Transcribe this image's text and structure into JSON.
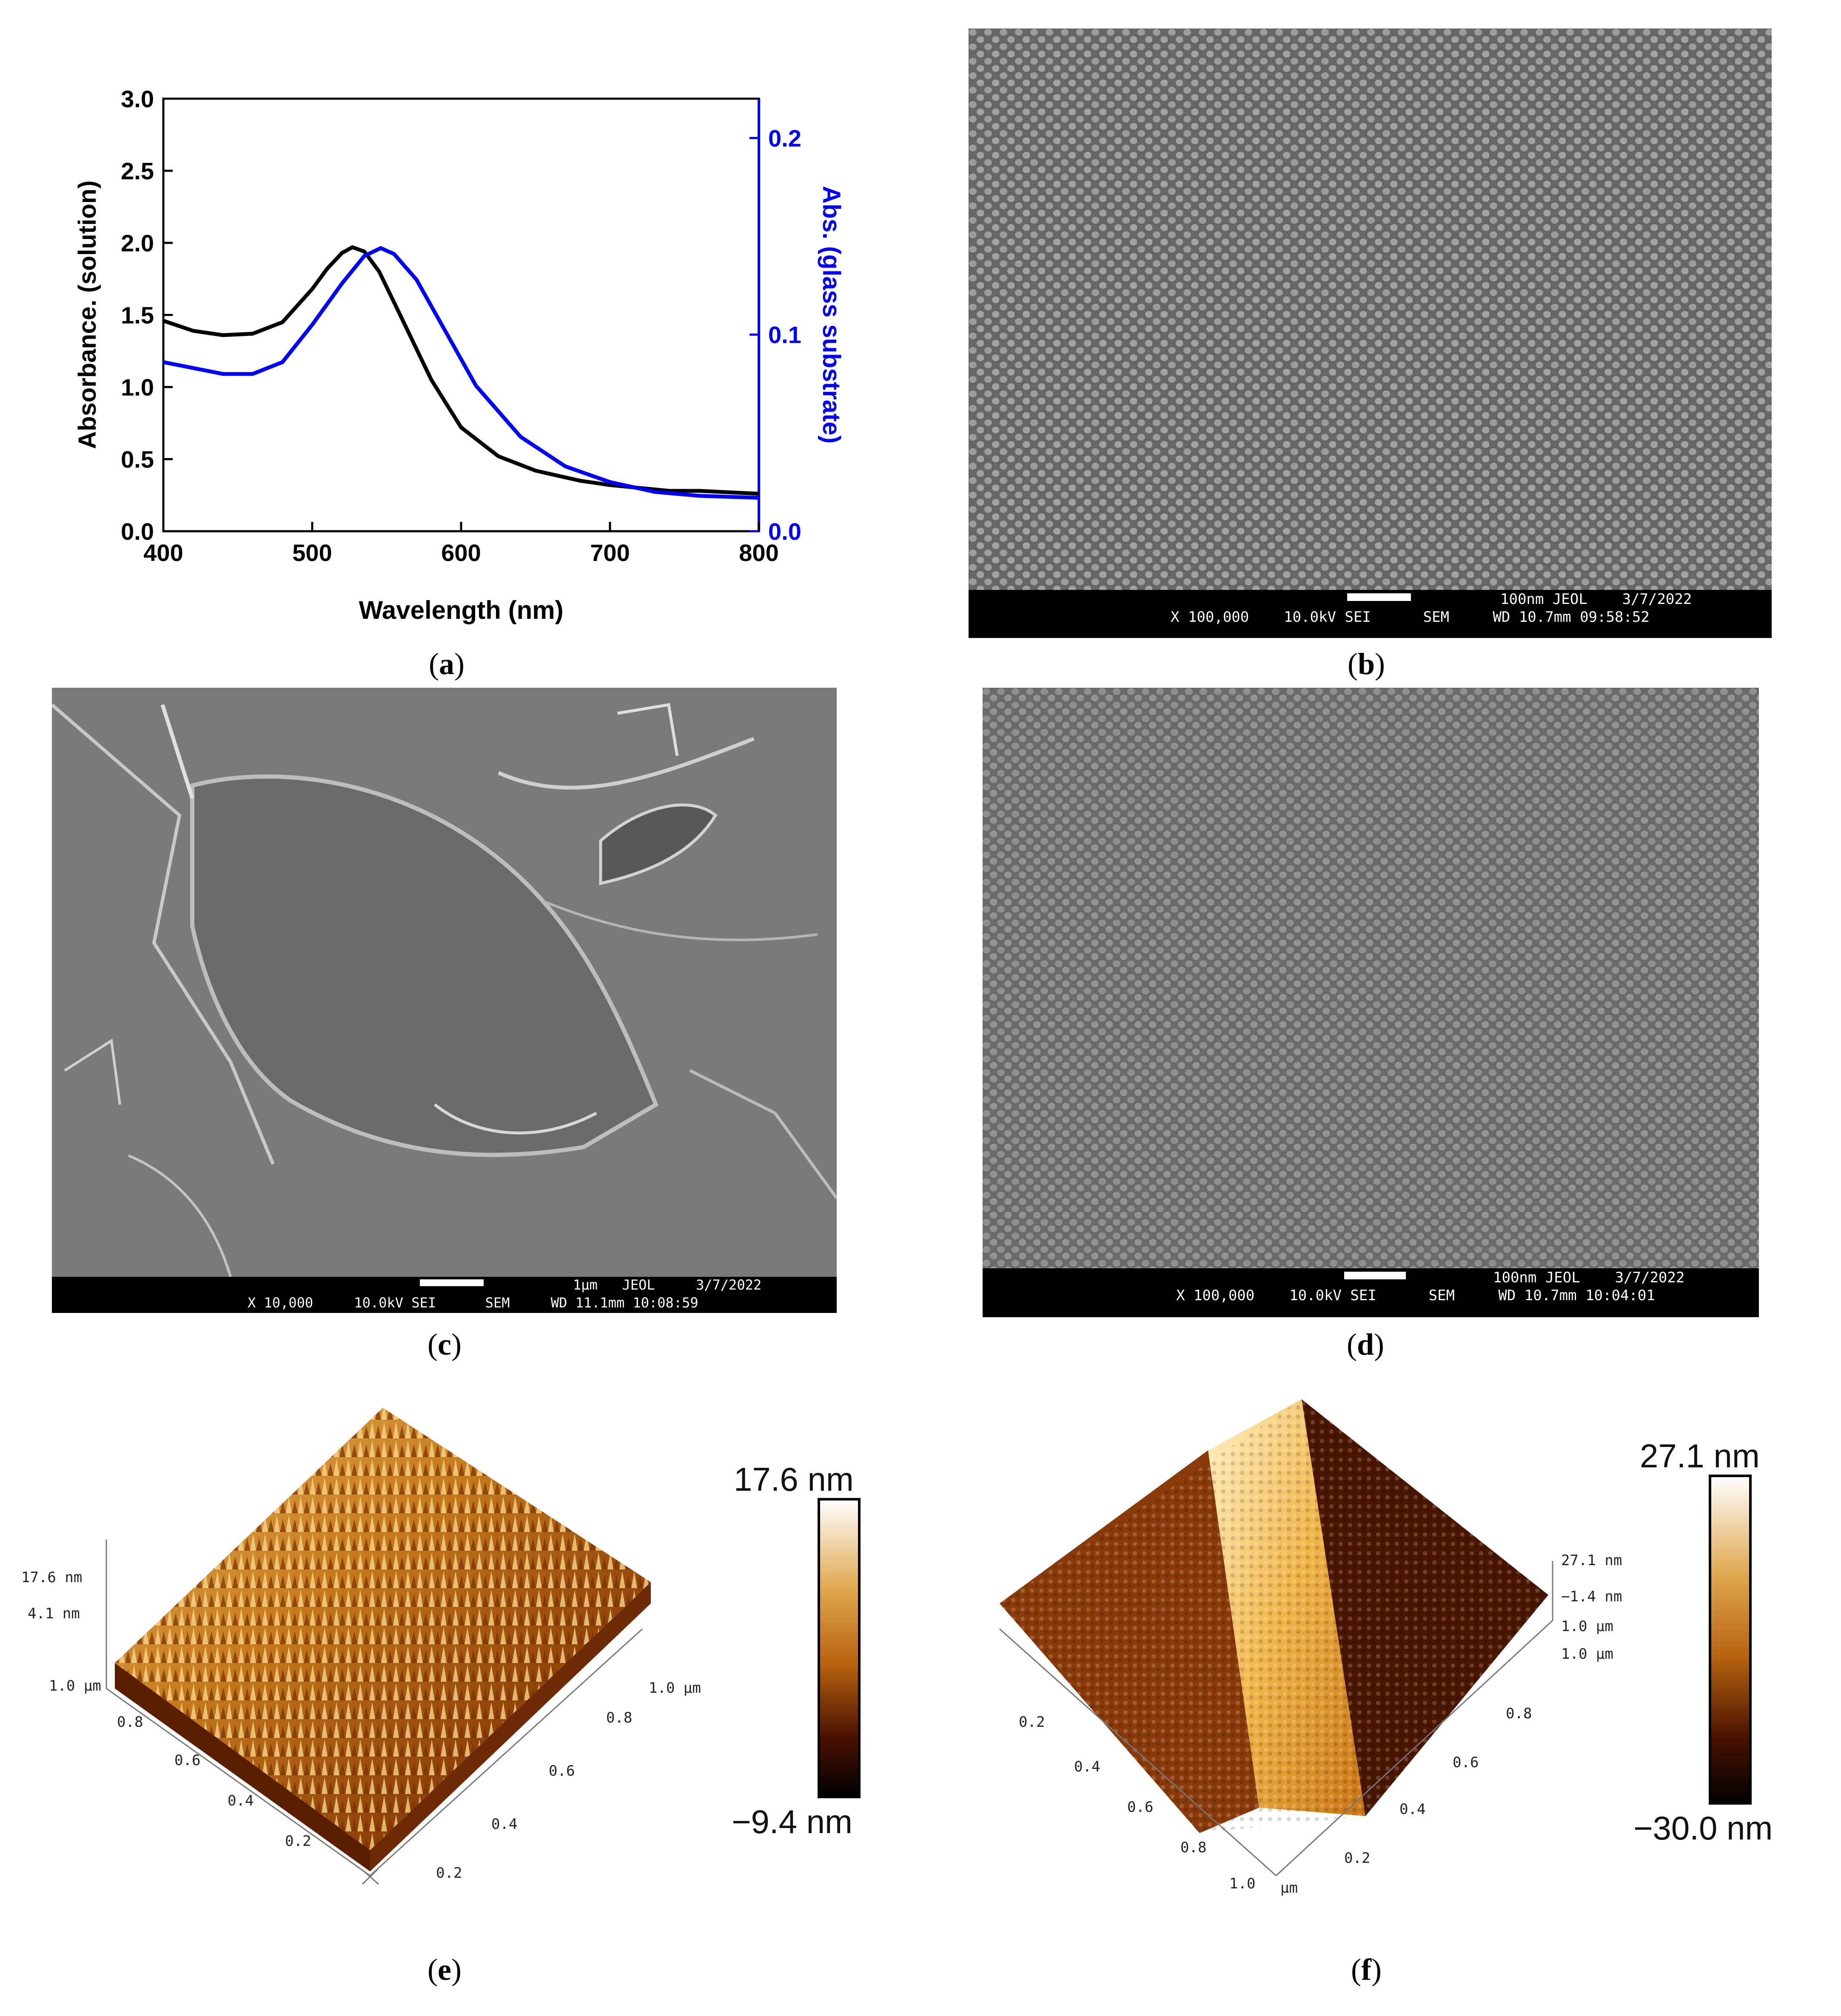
{
  "figure": {
    "panels": [
      "a",
      "b",
      "c",
      "d",
      "e",
      "f"
    ]
  },
  "chart_data": {
    "type": "line",
    "title": "",
    "xlabel": "Wavelength (nm)",
    "ylabel_left": "Absorbance. (solution)",
    "ylabel_right": "Abs. (glass substrate)",
    "xlim": [
      400,
      800
    ],
    "ylim_left": [
      0.0,
      3.0
    ],
    "ylim_right": [
      0.0,
      0.22
    ],
    "x_ticks": [
      "400",
      "500",
      "600",
      "700",
      "800"
    ],
    "y_ticks_left": [
      "0.0",
      "0.5",
      "1.0",
      "1.5",
      "2.0",
      "2.5",
      "3.0"
    ],
    "y_ticks_right": [
      "0.0",
      "0.1",
      "0.2"
    ],
    "right_axis_color": "#0000ff",
    "series": [
      {
        "name": "solution",
        "axis": "left",
        "color": "#000000",
        "x": [
          400,
          420,
          440,
          460,
          480,
          500,
          510,
          520,
          527,
          535,
          545,
          560,
          580,
          600,
          625,
          650,
          680,
          700,
          720,
          740,
          760,
          780,
          800
        ],
        "y": [
          1.46,
          1.39,
          1.36,
          1.37,
          1.45,
          1.68,
          1.82,
          1.93,
          1.97,
          1.94,
          1.8,
          1.48,
          1.05,
          0.72,
          0.52,
          0.42,
          0.35,
          0.32,
          0.3,
          0.28,
          0.28,
          0.27,
          0.26
        ]
      },
      {
        "name": "glass substrate",
        "axis": "right",
        "color": "#0000ff",
        "x": [
          400,
          420,
          440,
          460,
          480,
          500,
          520,
          535,
          546,
          555,
          570,
          590,
          610,
          640,
          670,
          700,
          730,
          760,
          800
        ],
        "y": [
          0.086,
          0.083,
          0.08,
          0.08,
          0.086,
          0.105,
          0.126,
          0.14,
          0.144,
          0.141,
          0.128,
          0.101,
          0.074,
          0.048,
          0.033,
          0.025,
          0.02,
          0.018,
          0.017
        ]
      }
    ]
  },
  "sem_b": {
    "line1_right": "100nm JEOL    3/7/2022",
    "line2": "X 100,000    10.0kV SEI      SEM     WD 10.7mm 09:58:52"
  },
  "sem_c": {
    "line1_right": "1μm   JEOL     3/7/2022",
    "line2": "X 10,000     10.0kV SEI      SEM     WD 11.1mm 10:08:59"
  },
  "sem_d": {
    "line1_right": "100nm JEOL    3/7/2022",
    "line2": "X 100,000    10.0kV SEI      SEM     WD 10.7mm 10:04:01"
  },
  "afm_e": {
    "z_top": "17.6 nm",
    "z_mid": "4.1 nm",
    "corner_left": "1.0 μm",
    "corner_right": "1.0 μm",
    "left_axis_ticks": [
      "0.8",
      "0.6",
      "0.4",
      "0.2"
    ],
    "right_axis_ticks": [
      "0.8",
      "0.6",
      "0.4",
      "0.2"
    ],
    "colorbar_max": "17.6 nm",
    "colorbar_min": "−9.4 nm"
  },
  "afm_f": {
    "z_top": "27.1 nm",
    "z_mid": "−1.4 nm",
    "z_unit": "1.0 μm",
    "corner_right": "1.0 μm",
    "corner_bottom": "1.0",
    "corner_bottom_unit": "μm",
    "left_axis_ticks": [
      "0.2",
      "0.4",
      "0.6",
      "0.8"
    ],
    "right_axis_ticks": [
      "0.8",
      "0.6",
      "0.4",
      "0.2"
    ],
    "colorbar_max": "27.1 nm",
    "colorbar_min": "−30.0 nm"
  },
  "captions": {
    "a": "a",
    "b": "b",
    "c": "c",
    "d": "d",
    "e": "e",
    "f": "f"
  },
  "colors": {
    "sem_gray": "#6f6f6f",
    "afm_dark": "#3a1000",
    "afm_mid": "#b8620e",
    "afm_light": "#ffe9a8"
  }
}
